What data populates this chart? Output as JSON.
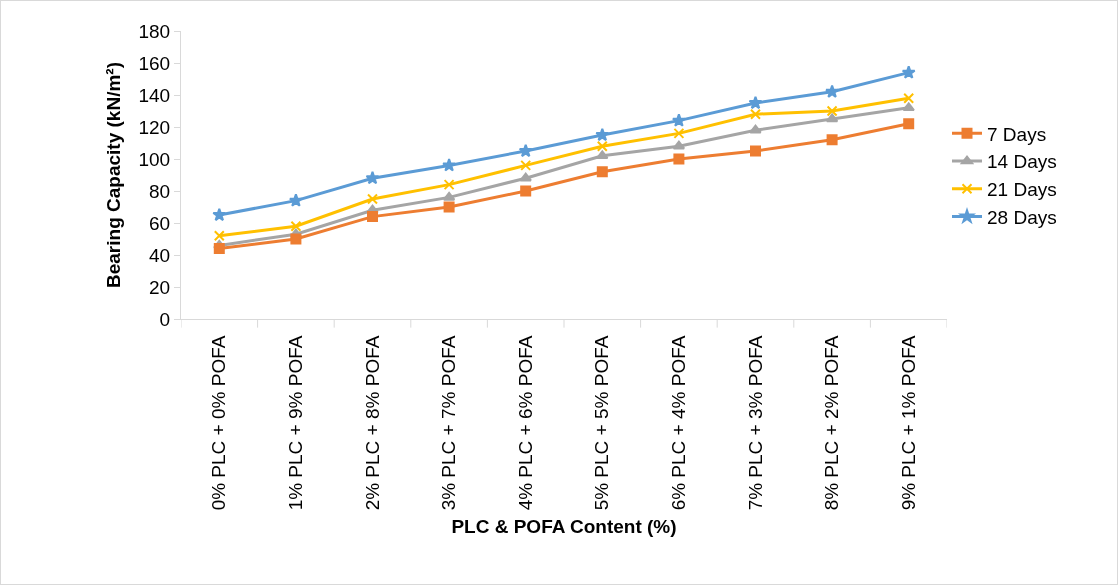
{
  "chart_data": {
    "type": "line",
    "xlabel": "PLC & POFA Content (%)",
    "ylabel": "Bearing Capacity (kN/m²)",
    "categories": [
      "0% PLC + 0% POFA",
      "1% PLC + 9% POFA",
      "2% PLC + 8% POFA",
      "3% PLC + 7% POFA",
      "4% PLC + 6% POFA",
      "5% PLC + 5% POFA",
      "6% PLC + 4% POFA",
      "7% PLC + 3% POFA",
      "8% PLC + 2% POFA",
      "9% PLC + 1% POFA"
    ],
    "series": [
      {
        "name": "7 Days",
        "color": "#ed7d31",
        "marker": "square",
        "values": [
          44,
          50,
          64,
          70,
          80,
          92,
          100,
          105,
          112,
          122
        ]
      },
      {
        "name": "14 Days",
        "color": "#a5a5a5",
        "marker": "triangle",
        "values": [
          46,
          53,
          68,
          76,
          88,
          102,
          108,
          118,
          125,
          132
        ]
      },
      {
        "name": "21 Days",
        "color": "#ffc000",
        "marker": "cross",
        "values": [
          52,
          58,
          75,
          84,
          96,
          108,
          116,
          128,
          130,
          138
        ]
      },
      {
        "name": "28 Days",
        "color": "#5b9bd5",
        "marker": "star",
        "values": [
          65,
          74,
          88,
          96,
          105,
          115,
          124,
          135,
          142,
          154
        ]
      }
    ],
    "ylim": [
      0,
      180
    ],
    "yticks": [
      0,
      20,
      40,
      60,
      80,
      100,
      120,
      140,
      160,
      180
    ],
    "grid": false,
    "legend": "right",
    "line_style": "solid"
  }
}
